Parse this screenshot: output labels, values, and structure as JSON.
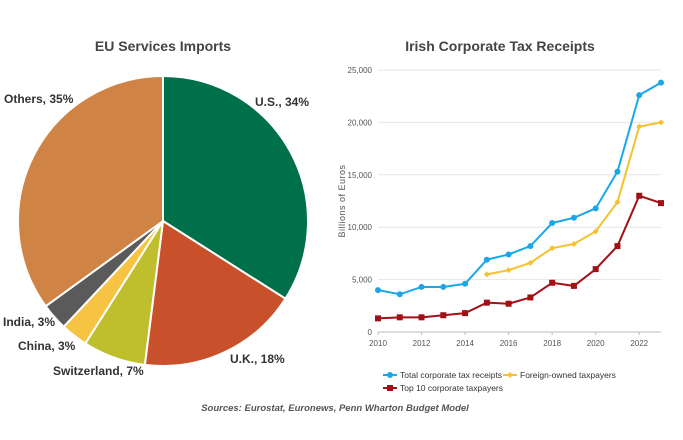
{
  "source_note": "Sources: Eurostat, Euronews, Penn Wharton Budget Model",
  "colors": {
    "us": "#00704a",
    "uk": "#c8512b",
    "switzerland": "#bfbf2e",
    "china": "#f6c342",
    "india": "#5a5a5a",
    "others": "#cf8445",
    "total": "#1aa7e8",
    "foreign": "#f5c12e",
    "top10": "#a01015"
  },
  "chart_data": [
    {
      "type": "pie",
      "title": "EU Services Imports",
      "slices": [
        {
          "key": "us",
          "label": "U.S., 34%",
          "value": 34
        },
        {
          "key": "uk",
          "label": "U.K., 18%",
          "value": 18
        },
        {
          "key": "switzerland",
          "label": "Switzerland, 7%",
          "value": 7
        },
        {
          "key": "china",
          "label": "China, 3%",
          "value": 3
        },
        {
          "key": "india",
          "label": "India, 3%",
          "value": 3
        },
        {
          "key": "others",
          "label": "Others, 35%",
          "value": 35
        }
      ]
    },
    {
      "type": "line",
      "title": "Irish Corporate Tax Receipts",
      "ylabel": "Billions of Euros",
      "xlim": [
        2010,
        2023
      ],
      "ylim": [
        0,
        25000
      ],
      "x_ticks": [
        2010,
        2012,
        2014,
        2016,
        2018,
        2020,
        2022
      ],
      "y_ticks": [
        0,
        5000,
        10000,
        15000,
        20000,
        25000
      ],
      "y_tick_labels": [
        "0",
        "5,000",
        "10,000",
        "15,000",
        "20,000",
        "25,000"
      ],
      "grid": "horizontal",
      "legend": "bottom",
      "series": [
        {
          "key": "total",
          "name": "Total corporate tax receipts",
          "x": [
            2010,
            2011,
            2012,
            2013,
            2014,
            2015,
            2016,
            2017,
            2018,
            2019,
            2020,
            2021,
            2022,
            2023
          ],
          "values": [
            4000,
            3600,
            4300,
            4300,
            4600,
            6900,
            7400,
            8200,
            10400,
            10900,
            11800,
            15300,
            22600,
            23800
          ]
        },
        {
          "key": "foreign",
          "name": "Foreign-owned taxpayers",
          "x": [
            2015,
            2016,
            2017,
            2018,
            2019,
            2020,
            2021,
            2022,
            2023
          ],
          "values": [
            5500,
            5900,
            6600,
            8000,
            8400,
            9600,
            12400,
            19600,
            20000
          ]
        },
        {
          "key": "top10",
          "name": "Top 10 corporate taxpayers",
          "x": [
            2010,
            2011,
            2012,
            2013,
            2014,
            2015,
            2016,
            2017,
            2018,
            2019,
            2020,
            2021,
            2022,
            2023
          ],
          "values": [
            1300,
            1400,
            1400,
            1600,
            1800,
            2800,
            2700,
            3300,
            4700,
            4400,
            6000,
            8200,
            13000,
            12300
          ]
        }
      ]
    }
  ]
}
